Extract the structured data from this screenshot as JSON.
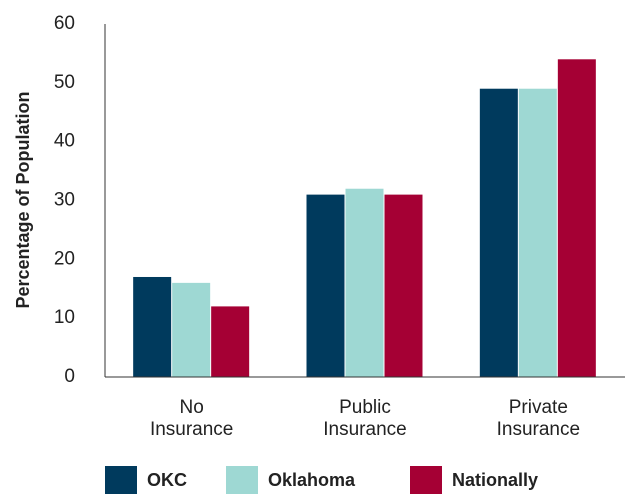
{
  "chart_data": {
    "type": "bar",
    "y_label": "Percentage of Population",
    "categories": [
      "No Insurance",
      "Public Insurance",
      "Private Insurance"
    ],
    "series": [
      {
        "name": "OKC",
        "color": "#003a5d",
        "values": [
          17,
          31,
          49
        ]
      },
      {
        "name": "Oklahoma",
        "color": "#9ed8d3",
        "values": [
          16,
          32,
          49
        ]
      },
      {
        "name": "Nationally",
        "color": "#a50034",
        "values": [
          12,
          31,
          54
        ]
      }
    ],
    "ylim": [
      0,
      60
    ],
    "yticks": [
      0,
      10,
      20,
      30,
      40,
      50,
      60
    ],
    "grid": false,
    "legend": "bottom"
  }
}
